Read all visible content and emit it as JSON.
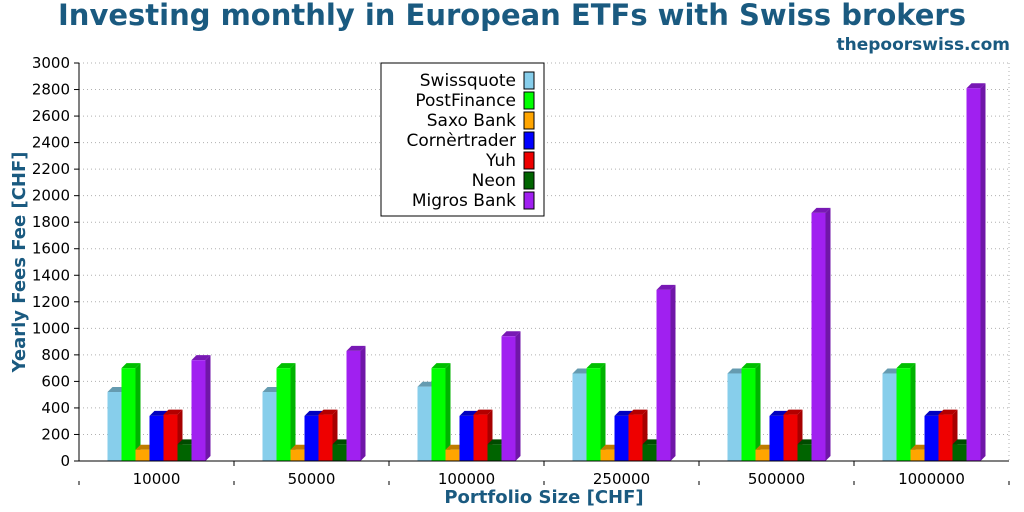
{
  "header": {
    "title": "Investing monthly in European ETFs with Swiss brokers",
    "site": "thepoorswiss.com"
  },
  "colors": {
    "title": "#1a5a80",
    "grid": "#b0b0b0"
  },
  "chart_data": {
    "type": "bar",
    "xlabel": "Portfolio Size [CHF]",
    "ylabel": "Yearly Fees Fee [CHF]",
    "ylim": [
      0,
      3000
    ],
    "yticks": [
      0,
      200,
      400,
      600,
      800,
      1000,
      1200,
      1400,
      1600,
      1800,
      2000,
      2200,
      2400,
      2600,
      2800,
      3000
    ],
    "categories": [
      "10000",
      "50000",
      "100000",
      "250000",
      "500000",
      "1000000"
    ],
    "grid": true,
    "legend_position": "top-center",
    "series": [
      {
        "name": "Swissquote",
        "color": "#87ceeb",
        "values": [
          520,
          520,
          560,
          660,
          660,
          660
        ]
      },
      {
        "name": "PostFinance",
        "color": "#00ff00",
        "values": [
          700,
          700,
          700,
          700,
          700,
          700
        ]
      },
      {
        "name": "Saxo Bank",
        "color": "#ffa500",
        "values": [
          85,
          85,
          85,
          85,
          85,
          85
        ]
      },
      {
        "name": "Cornèrtrader",
        "color": "#0000ff",
        "values": [
          340,
          340,
          340,
          340,
          340,
          340
        ]
      },
      {
        "name": "Yuh",
        "color": "#ee0000",
        "values": [
          350,
          350,
          350,
          350,
          350,
          350
        ]
      },
      {
        "name": "Neon",
        "color": "#006400",
        "values": [
          125,
          125,
          125,
          125,
          125,
          125
        ]
      },
      {
        "name": "Migros Bank",
        "color": "#a020f0",
        "values": [
          760,
          830,
          940,
          1290,
          1870,
          2810
        ]
      }
    ]
  }
}
